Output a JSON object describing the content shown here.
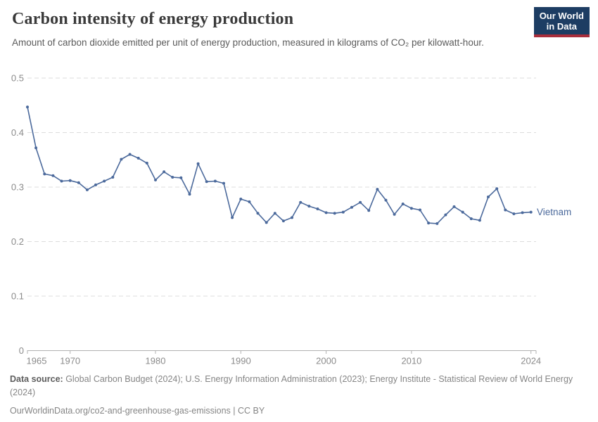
{
  "header": {
    "title": "Carbon intensity of energy production",
    "subtitle": "Amount of carbon dioxide emitted per unit of energy production, measured in kilograms of CO₂ per kilowatt-hour."
  },
  "logo": {
    "line1": "Our World",
    "line2": "in Data",
    "bg_color": "#1d3d63",
    "stripe_color": "#a92e3c"
  },
  "chart_data": {
    "type": "line",
    "title": "Carbon intensity of energy production",
    "xlabel": "",
    "ylabel": "kilograms of CO₂ per kilowatt-hour",
    "ylim": [
      0,
      0.5
    ],
    "yticks": [
      0,
      0.1,
      0.2,
      0.3,
      0.4,
      0.5
    ],
    "ytick_labels": [
      "0",
      "0.1",
      "0.2",
      "0.3",
      "0.4",
      "0.5"
    ],
    "xticks": [
      1965,
      1970,
      1980,
      1990,
      2000,
      2010,
      2024
    ],
    "grid": "horizontal-dashed",
    "grid_color": "#dcdcdc",
    "axis_color": "#b0b0b0",
    "tick_label_color": "#8b8b8b",
    "legend_position": "end-of-line-label",
    "series": [
      {
        "name": "Vietnam",
        "color": "#4c6a9c",
        "x": [
          1965,
          1966,
          1967,
          1968,
          1969,
          1970,
          1971,
          1972,
          1973,
          1974,
          1975,
          1976,
          1977,
          1978,
          1979,
          1980,
          1981,
          1982,
          1983,
          1984,
          1985,
          1986,
          1987,
          1988,
          1989,
          1990,
          1991,
          1992,
          1993,
          1994,
          1995,
          1996,
          1997,
          1998,
          1999,
          2000,
          2001,
          2002,
          2003,
          2004,
          2005,
          2006,
          2007,
          2008,
          2009,
          2010,
          2011,
          2012,
          2013,
          2014,
          2015,
          2016,
          2017,
          2018,
          2019,
          2020,
          2021,
          2022,
          2023,
          2024
        ],
        "values": [
          0.447,
          0.372,
          0.324,
          0.321,
          0.311,
          0.312,
          0.308,
          0.295,
          0.304,
          0.311,
          0.318,
          0.351,
          0.36,
          0.353,
          0.344,
          0.313,
          0.328,
          0.318,
          0.317,
          0.287,
          0.343,
          0.31,
          0.311,
          0.307,
          0.244,
          0.278,
          0.273,
          0.252,
          0.235,
          0.252,
          0.238,
          0.244,
          0.272,
          0.265,
          0.26,
          0.253,
          0.252,
          0.254,
          0.263,
          0.272,
          0.257,
          0.296,
          0.276,
          0.25,
          0.269,
          0.261,
          0.258,
          0.234,
          0.233,
          0.249,
          0.264,
          0.254,
          0.242,
          0.239,
          0.282,
          0.297,
          0.258,
          0.251,
          0.253,
          0.254
        ]
      }
    ]
  },
  "footer": {
    "source_label": "Data source:",
    "source_text": " Global Carbon Budget (2024); U.S. Energy Information Administration (2023); Energy Institute - Statistical Review of World Energy (2024)",
    "link_text": "OurWorldinData.org/co2-and-greenhouse-gas-emissions | CC BY"
  }
}
